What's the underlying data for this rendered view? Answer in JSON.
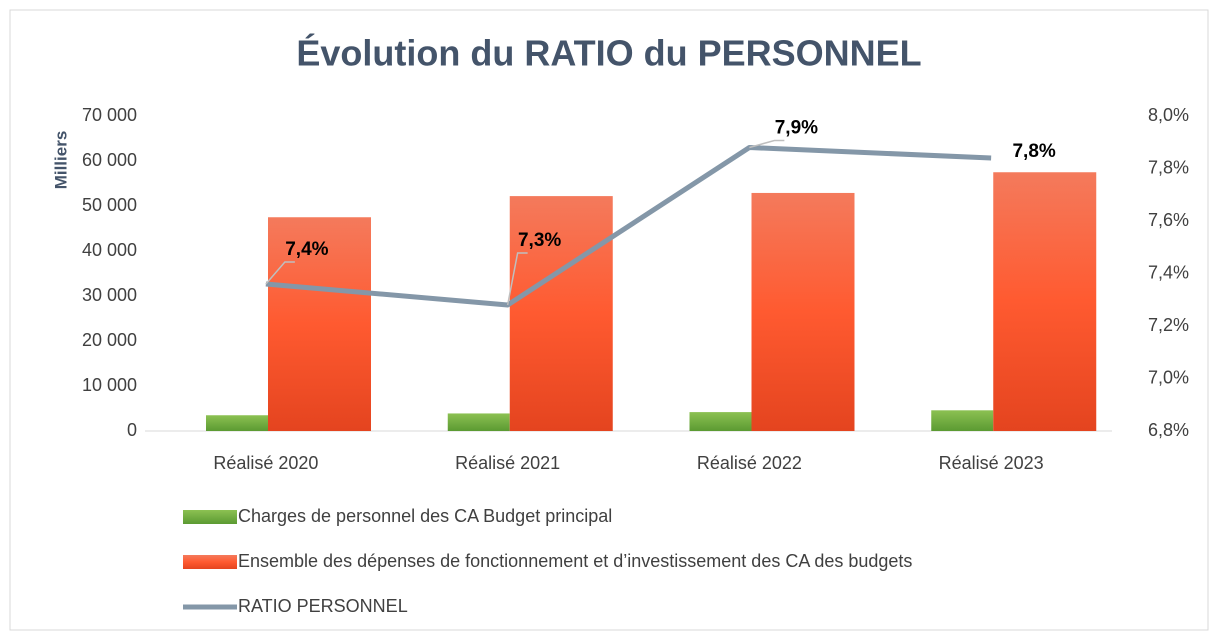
{
  "chart_data": {
    "type": "bar_line",
    "title": "Évolution du RATIO du PERSONNEL",
    "y_label": "Milliers",
    "categories": [
      "Réalisé 2020",
      "Réalisé 2021",
      "Réalisé 2022",
      "Réalisé 2023"
    ],
    "series": [
      {
        "name": "Charges de personnel des CA Budget principal",
        "type": "bar",
        "color": "#70ad47",
        "values": [
          3500,
          3900,
          4200,
          4600
        ]
      },
      {
        "name": "Ensemble des dépenses de fonctionnement et d’investissement des CA des budgets",
        "type": "bar",
        "color": "#f05a32",
        "values": [
          47500,
          52200,
          52900,
          57500
        ]
      },
      {
        "name": "RATIO PERSONNEL",
        "type": "line",
        "axis": "y2",
        "color": "#8497a8",
        "values": [
          7.36,
          7.28,
          7.88,
          7.84
        ],
        "value_labels": [
          "7,4%",
          "7,3%",
          "7,9%",
          "7,8%"
        ]
      }
    ],
    "ylim": [
      0,
      70000
    ],
    "yticks": [
      {
        "value": 0,
        "label": "0"
      },
      {
        "value": 10000,
        "label": "10 000"
      },
      {
        "value": 20000,
        "label": "20 000"
      },
      {
        "value": 30000,
        "label": "30 000"
      },
      {
        "value": 40000,
        "label": "40 000"
      },
      {
        "value": 50000,
        "label": "50 000"
      },
      {
        "value": 60000,
        "label": "60 000"
      },
      {
        "value": 70000,
        "label": "70 000"
      }
    ],
    "y2lim": [
      6.8,
      8.0
    ],
    "y2ticks": [
      {
        "value": 6.8,
        "label": "6,8%"
      },
      {
        "value": 7.0,
        "label": "7,0%"
      },
      {
        "value": 7.2,
        "label": "7,2%"
      },
      {
        "value": 7.4,
        "label": "7,4%"
      },
      {
        "value": 7.6,
        "label": "7,6%"
      },
      {
        "value": 7.8,
        "label": "7,8%"
      },
      {
        "value": 8.0,
        "label": "8,0%"
      }
    ]
  }
}
